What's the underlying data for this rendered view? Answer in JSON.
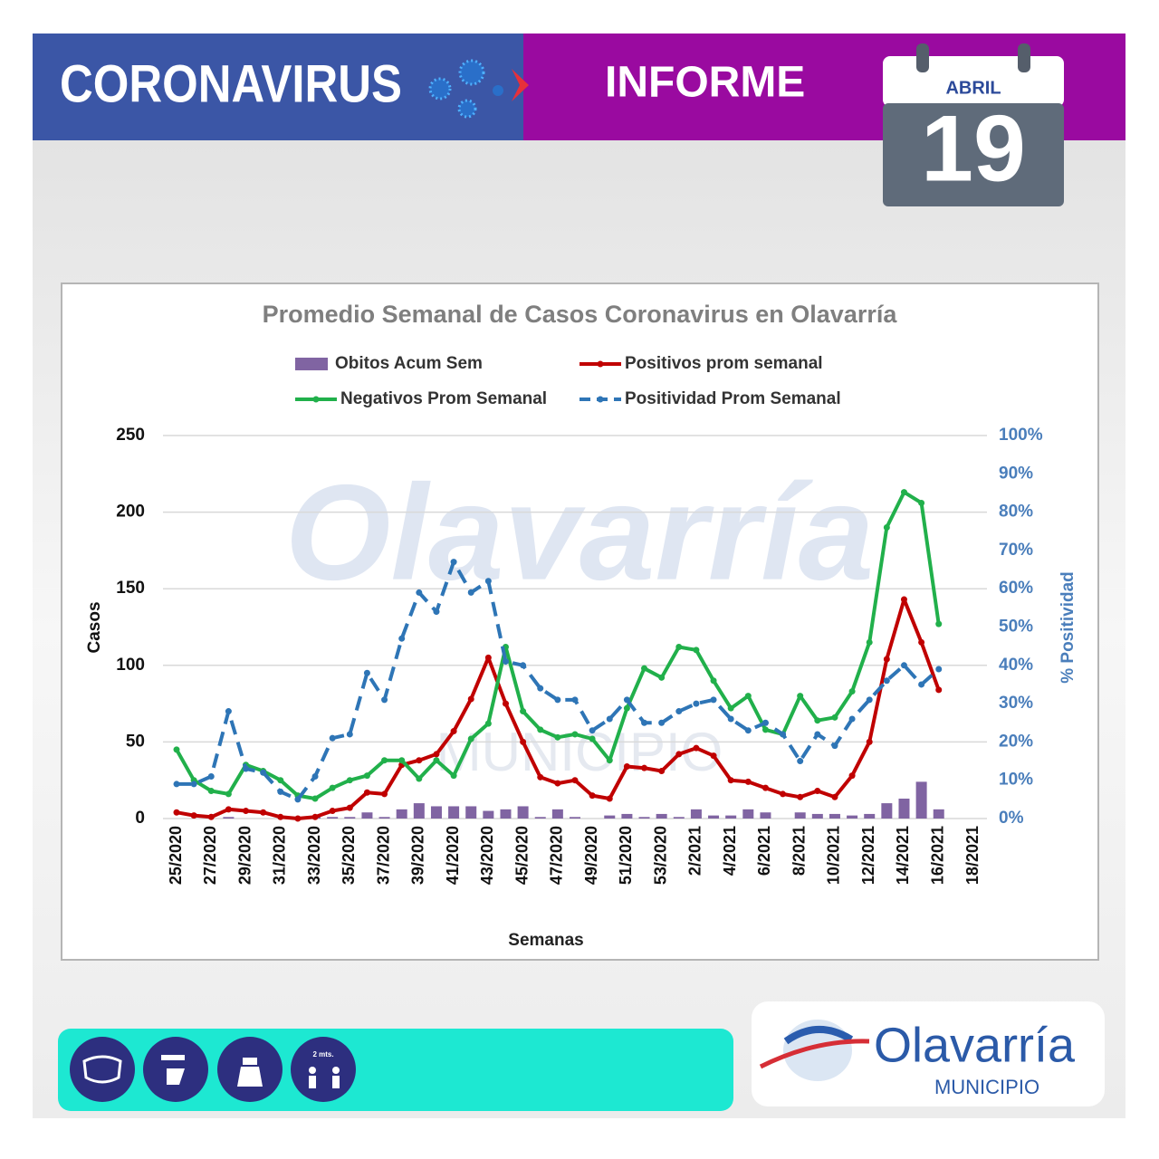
{
  "header": {
    "title": "CORONAVIRUS",
    "report": "INFORME",
    "month": "ABRIL",
    "day": "19"
  },
  "chart_data": {
    "type": "combo",
    "title": "Promedio Semanal de Casos Coronavirus en Olavarría",
    "xlabel": "Semanas",
    "ylabel": "Casos",
    "y2label": "% Positividad",
    "categories": [
      "25/2020",
      null,
      "27/2020",
      null,
      "29/2020",
      null,
      "31/2020",
      null,
      "33/2020",
      null,
      "35/2020",
      null,
      "37/2020",
      null,
      "39/2020",
      null,
      "41/2020",
      null,
      "43/2020",
      null,
      "45/2020",
      null,
      "47/2020",
      null,
      "49/2020",
      null,
      "51/2020",
      null,
      "53/2020",
      null,
      "2/2021",
      null,
      "4/2021",
      null,
      "6/2021",
      null,
      "8/2021",
      null,
      "10/2021",
      null,
      "12/2021",
      null,
      "14/2021",
      null,
      "16/2021",
      null,
      "18/2021"
    ],
    "ylim": [
      0,
      250
    ],
    "yticks": [
      0,
      50,
      100,
      150,
      200,
      250
    ],
    "y2lim": [
      0,
      100
    ],
    "y2ticks": [
      {
        "value": 0,
        "label": "0%"
      },
      {
        "value": 10,
        "label": "10%"
      },
      {
        "value": 20,
        "label": "20%"
      },
      {
        "value": 30,
        "label": "30%"
      },
      {
        "value": 40,
        "label": "40%"
      },
      {
        "value": 50,
        "label": "50%"
      },
      {
        "value": 60,
        "label": "60%"
      },
      {
        "value": 70,
        "label": "70%"
      },
      {
        "value": 80,
        "label": "80%"
      },
      {
        "value": 90,
        "label": "90%"
      },
      {
        "value": 100,
        "label": "100%"
      }
    ],
    "grid": true,
    "legend": "top",
    "series": [
      {
        "name": "Obitos Acum Sem",
        "type": "bar",
        "color": "#8064a2",
        "values": [
          0,
          0,
          0,
          1,
          0,
          0,
          0,
          0,
          1,
          1,
          1,
          4,
          1,
          6,
          10,
          8,
          8,
          8,
          5,
          6,
          8,
          1,
          6,
          1,
          0,
          2,
          3,
          1,
          3,
          1,
          6,
          2,
          2,
          6,
          4,
          0,
          4,
          3,
          3,
          2,
          3,
          10,
          13,
          24,
          6,
          null,
          null
        ]
      },
      {
        "name": "Positivos prom semanal",
        "type": "line",
        "color": "#c00000",
        "values": [
          4,
          2,
          1,
          6,
          5,
          4,
          1,
          0,
          1,
          5,
          7,
          17,
          16,
          35,
          38,
          42,
          57,
          78,
          105,
          75,
          50,
          27,
          23,
          25,
          15,
          13,
          34,
          33,
          31,
          42,
          46,
          41,
          25,
          24,
          20,
          16,
          14,
          18,
          14,
          28,
          50,
          104,
          143,
          115,
          84,
          null,
          null
        ]
      },
      {
        "name": "Negativos Prom Semanal",
        "type": "line",
        "color": "#21b04b",
        "values": [
          45,
          25,
          18,
          16,
          35,
          31,
          25,
          15,
          13,
          20,
          25,
          28,
          38,
          38,
          26,
          38,
          28,
          52,
          62,
          112,
          70,
          58,
          53,
          55,
          52,
          38,
          72,
          98,
          92,
          112,
          110,
          90,
          72,
          80,
          58,
          55,
          80,
          64,
          66,
          83,
          115,
          190,
          213,
          206,
          127,
          null,
          null
        ]
      },
      {
        "name": "Positividad Prom Semanal",
        "type": "line",
        "color": "#2e75b6",
        "axis": "y2",
        "dashed": true,
        "values": [
          9,
          9,
          11,
          28,
          13,
          12,
          7,
          5,
          11,
          21,
          22,
          38,
          31,
          47,
          59,
          54,
          67,
          59,
          62,
          41,
          40,
          34,
          31,
          31,
          23,
          26,
          31,
          25,
          25,
          28,
          30,
          31,
          26,
          23,
          25,
          22,
          15,
          22,
          19,
          26,
          31,
          36,
          40,
          35,
          39,
          null,
          null
        ]
      }
    ]
  },
  "watermark": {
    "name": "Olavarría",
    "sub": "MUNICIPIO"
  },
  "footer": {
    "distance": "2 mts.",
    "logo": "Olavarría",
    "logo_sub": "MUNICIPIO"
  }
}
